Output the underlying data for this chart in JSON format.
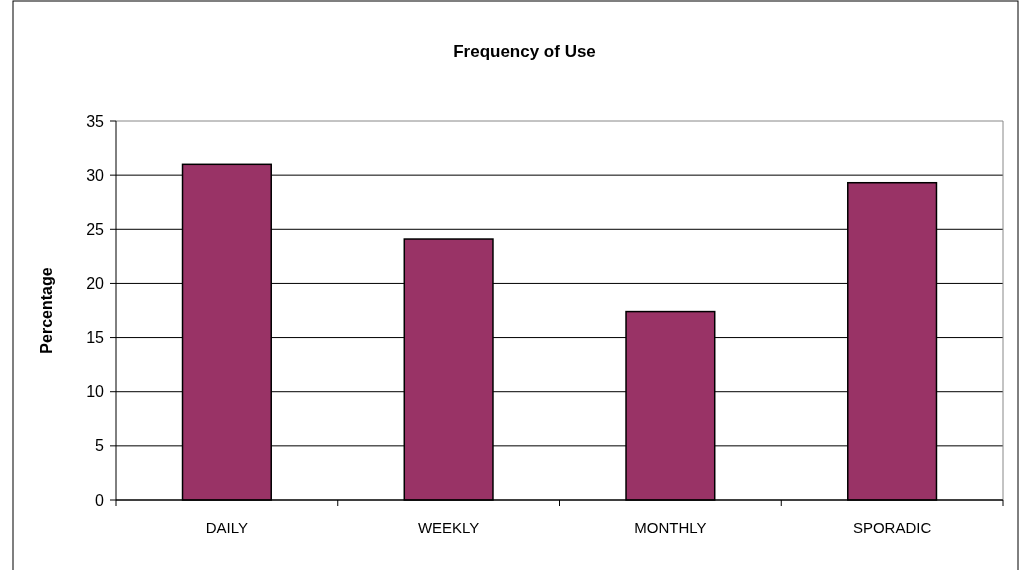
{
  "chart_data": {
    "type": "bar",
    "title": "Frequency of Use",
    "ylabel": "Percentage",
    "categories": [
      "DAILY",
      "WEEKLY",
      "MONTHLY",
      "SPORADIC"
    ],
    "values": [
      31,
      24.1,
      17.4,
      29.3
    ],
    "color": "#993366",
    "ylim": [
      0,
      35
    ],
    "yticks": [
      0,
      5,
      10,
      15,
      20,
      25,
      30,
      35
    ],
    "grid": "y"
  }
}
